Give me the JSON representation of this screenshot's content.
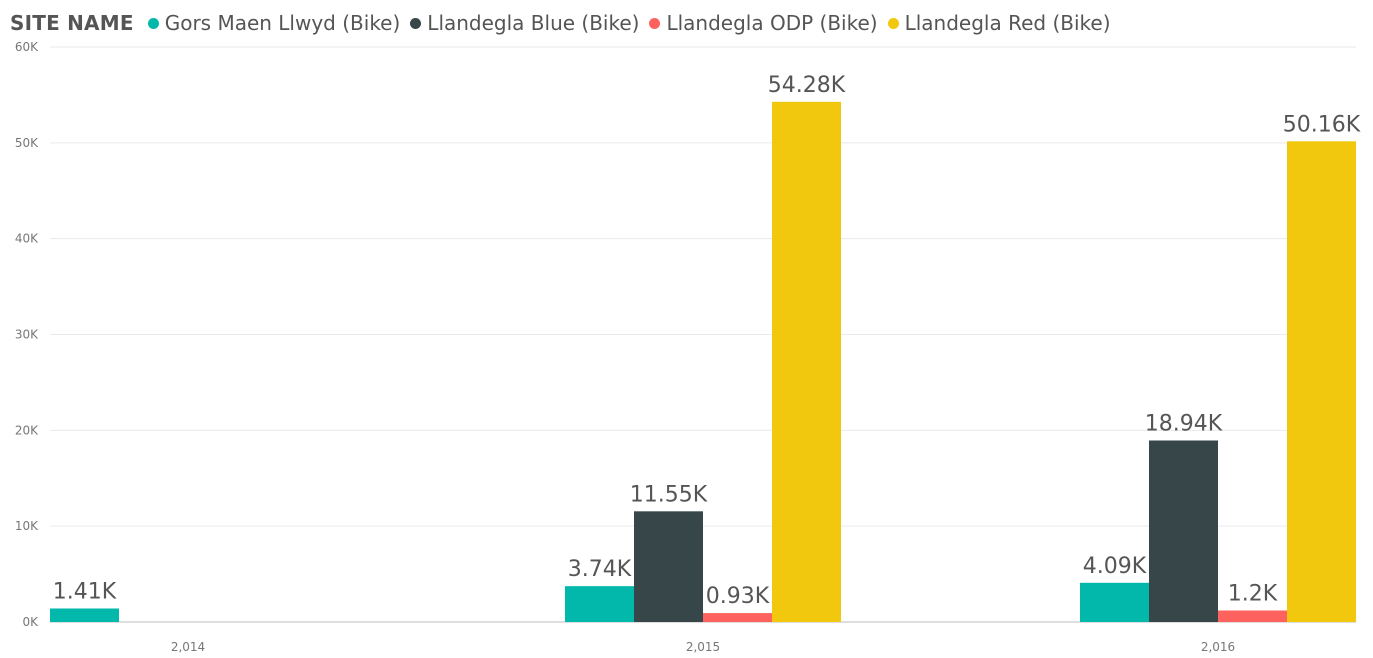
{
  "legend": {
    "title": "SITE NAME"
  },
  "chart_data": {
    "type": "bar",
    "title": "",
    "xlabel": "",
    "ylabel": "",
    "categories": [
      "2,014",
      "2,015",
      "2,016"
    ],
    "ylim": [
      0,
      60000
    ],
    "yticks": [
      0,
      10000,
      20000,
      30000,
      40000,
      50000,
      60000
    ],
    "ytick_labels": [
      "0K",
      "10K",
      "20K",
      "30K",
      "40K",
      "50K",
      "60K"
    ],
    "grid": true,
    "legend_position": "top-left",
    "series": [
      {
        "name": "Gors Maen Llwyd (Bike)",
        "color": "#01B8AA",
        "values": [
          1410,
          3740,
          4090
        ],
        "labels": [
          "1.41K",
          "3.74K",
          "4.09K"
        ]
      },
      {
        "name": "Llandegla Blue (Bike)",
        "color": "#374649",
        "values": [
          null,
          11550,
          18940
        ],
        "labels": [
          null,
          "11.55K",
          "18.94K"
        ]
      },
      {
        "name": "Llandegla ODP (Bike)",
        "color": "#FD625E",
        "values": [
          null,
          930,
          1200
        ],
        "labels": [
          null,
          "0.93K",
          "1.2K"
        ]
      },
      {
        "name": "Llandegla Red (Bike)",
        "color": "#F2C80F",
        "values": [
          null,
          54280,
          50160
        ],
        "labels": [
          null,
          "54.28K",
          "50.16K"
        ]
      }
    ]
  }
}
